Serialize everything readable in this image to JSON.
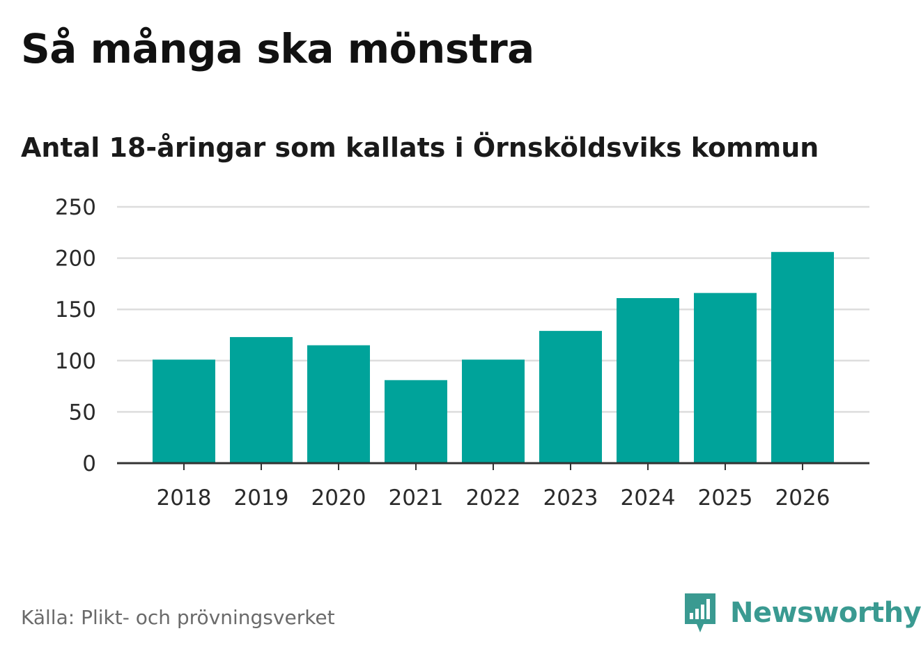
{
  "header": {
    "title": "Så många ska mönstra",
    "subtitle": "Antal 18-åringar som kallats i Örnsköldsviks kommun"
  },
  "footer": {
    "source": "Källa: Plikt- och prövningsverket",
    "brand": "Newsworthy",
    "brand_icon": "bar-chart-speech-bubble-icon"
  },
  "colors": {
    "bar": "#00A39A",
    "grid": "#dddddd",
    "axis": "#333333",
    "brand": "#3a9a91"
  },
  "chart_data": {
    "type": "bar",
    "title": "Så många ska mönstra",
    "subtitle": "Antal 18-åringar som kallats i Örnsköldsviks kommun",
    "categories": [
      "2018",
      "2019",
      "2020",
      "2021",
      "2022",
      "2023",
      "2024",
      "2025",
      "2026"
    ],
    "values": [
      101,
      123,
      115,
      81,
      101,
      129,
      161,
      166,
      206
    ],
    "xlabel": "",
    "ylabel": "",
    "ylim": [
      0,
      250
    ],
    "yticks": [
      "0",
      "50",
      "100",
      "150",
      "200",
      "250"
    ],
    "grid": true,
    "legend": "none"
  }
}
